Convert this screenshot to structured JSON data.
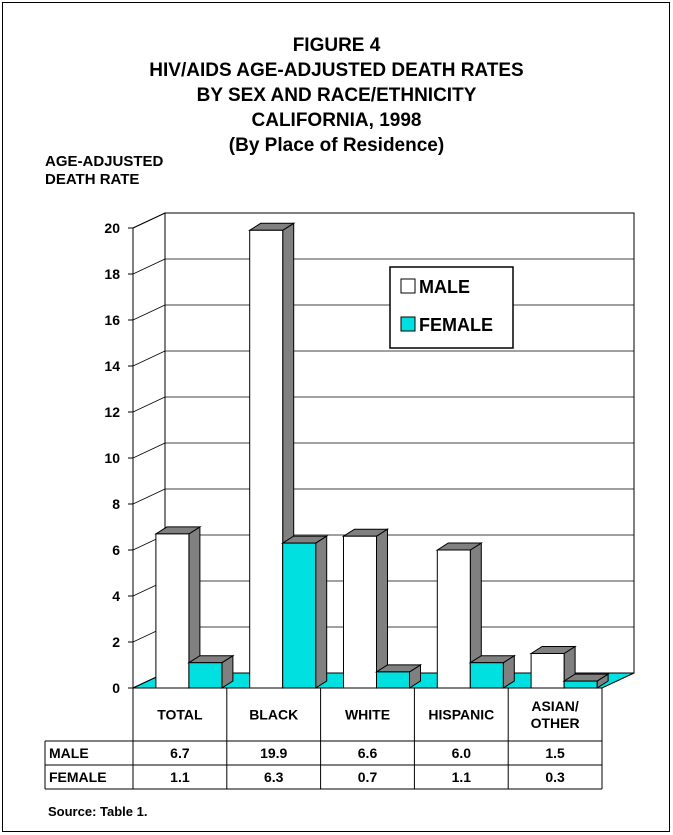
{
  "title_lines": [
    "FIGURE 4",
    "HIV/AIDS AGE-ADJUSTED DEATH RATES",
    "BY SEX AND RACE/ETHNICITY",
    "CALIFORNIA, 1998",
    "(By Place of Residence)"
  ],
  "ylabel_lines": [
    "AGE-ADJUSTED",
    "DEATH RATE"
  ],
  "source": "Source:  Table 1.",
  "colors": {
    "male": "#ffffff",
    "female": "#00e0e0",
    "side": "#808080",
    "floor": "#00e0e0"
  },
  "chart_data": {
    "type": "bar",
    "categories": [
      {
        "label_lines": [
          "TOTAL"
        ]
      },
      {
        "label_lines": [
          "BLACK"
        ]
      },
      {
        "label_lines": [
          "WHITE"
        ]
      },
      {
        "label_lines": [
          "HISPANIC"
        ]
      },
      {
        "label_lines": [
          "ASIAN/",
          "OTHER"
        ]
      }
    ],
    "series": [
      {
        "name": "MALE",
        "values": [
          6.7,
          19.9,
          6.6,
          6.0,
          1.5
        ],
        "labels": [
          "6.7",
          "19.9",
          "6.6",
          "6.0",
          "1.5"
        ]
      },
      {
        "name": "FEMALE",
        "values": [
          1.1,
          6.3,
          0.7,
          1.1,
          0.3
        ],
        "labels": [
          "1.1",
          "6.3",
          "0.7",
          "1.1",
          "0.3"
        ]
      }
    ],
    "yticks": [
      "0",
      "2",
      "4",
      "6",
      "8",
      "10",
      "12",
      "14",
      "16",
      "18",
      "20"
    ],
    "ylim": [
      0,
      20
    ],
    "grid": true,
    "legend": "top-right, inside plot",
    "data_table": true
  }
}
